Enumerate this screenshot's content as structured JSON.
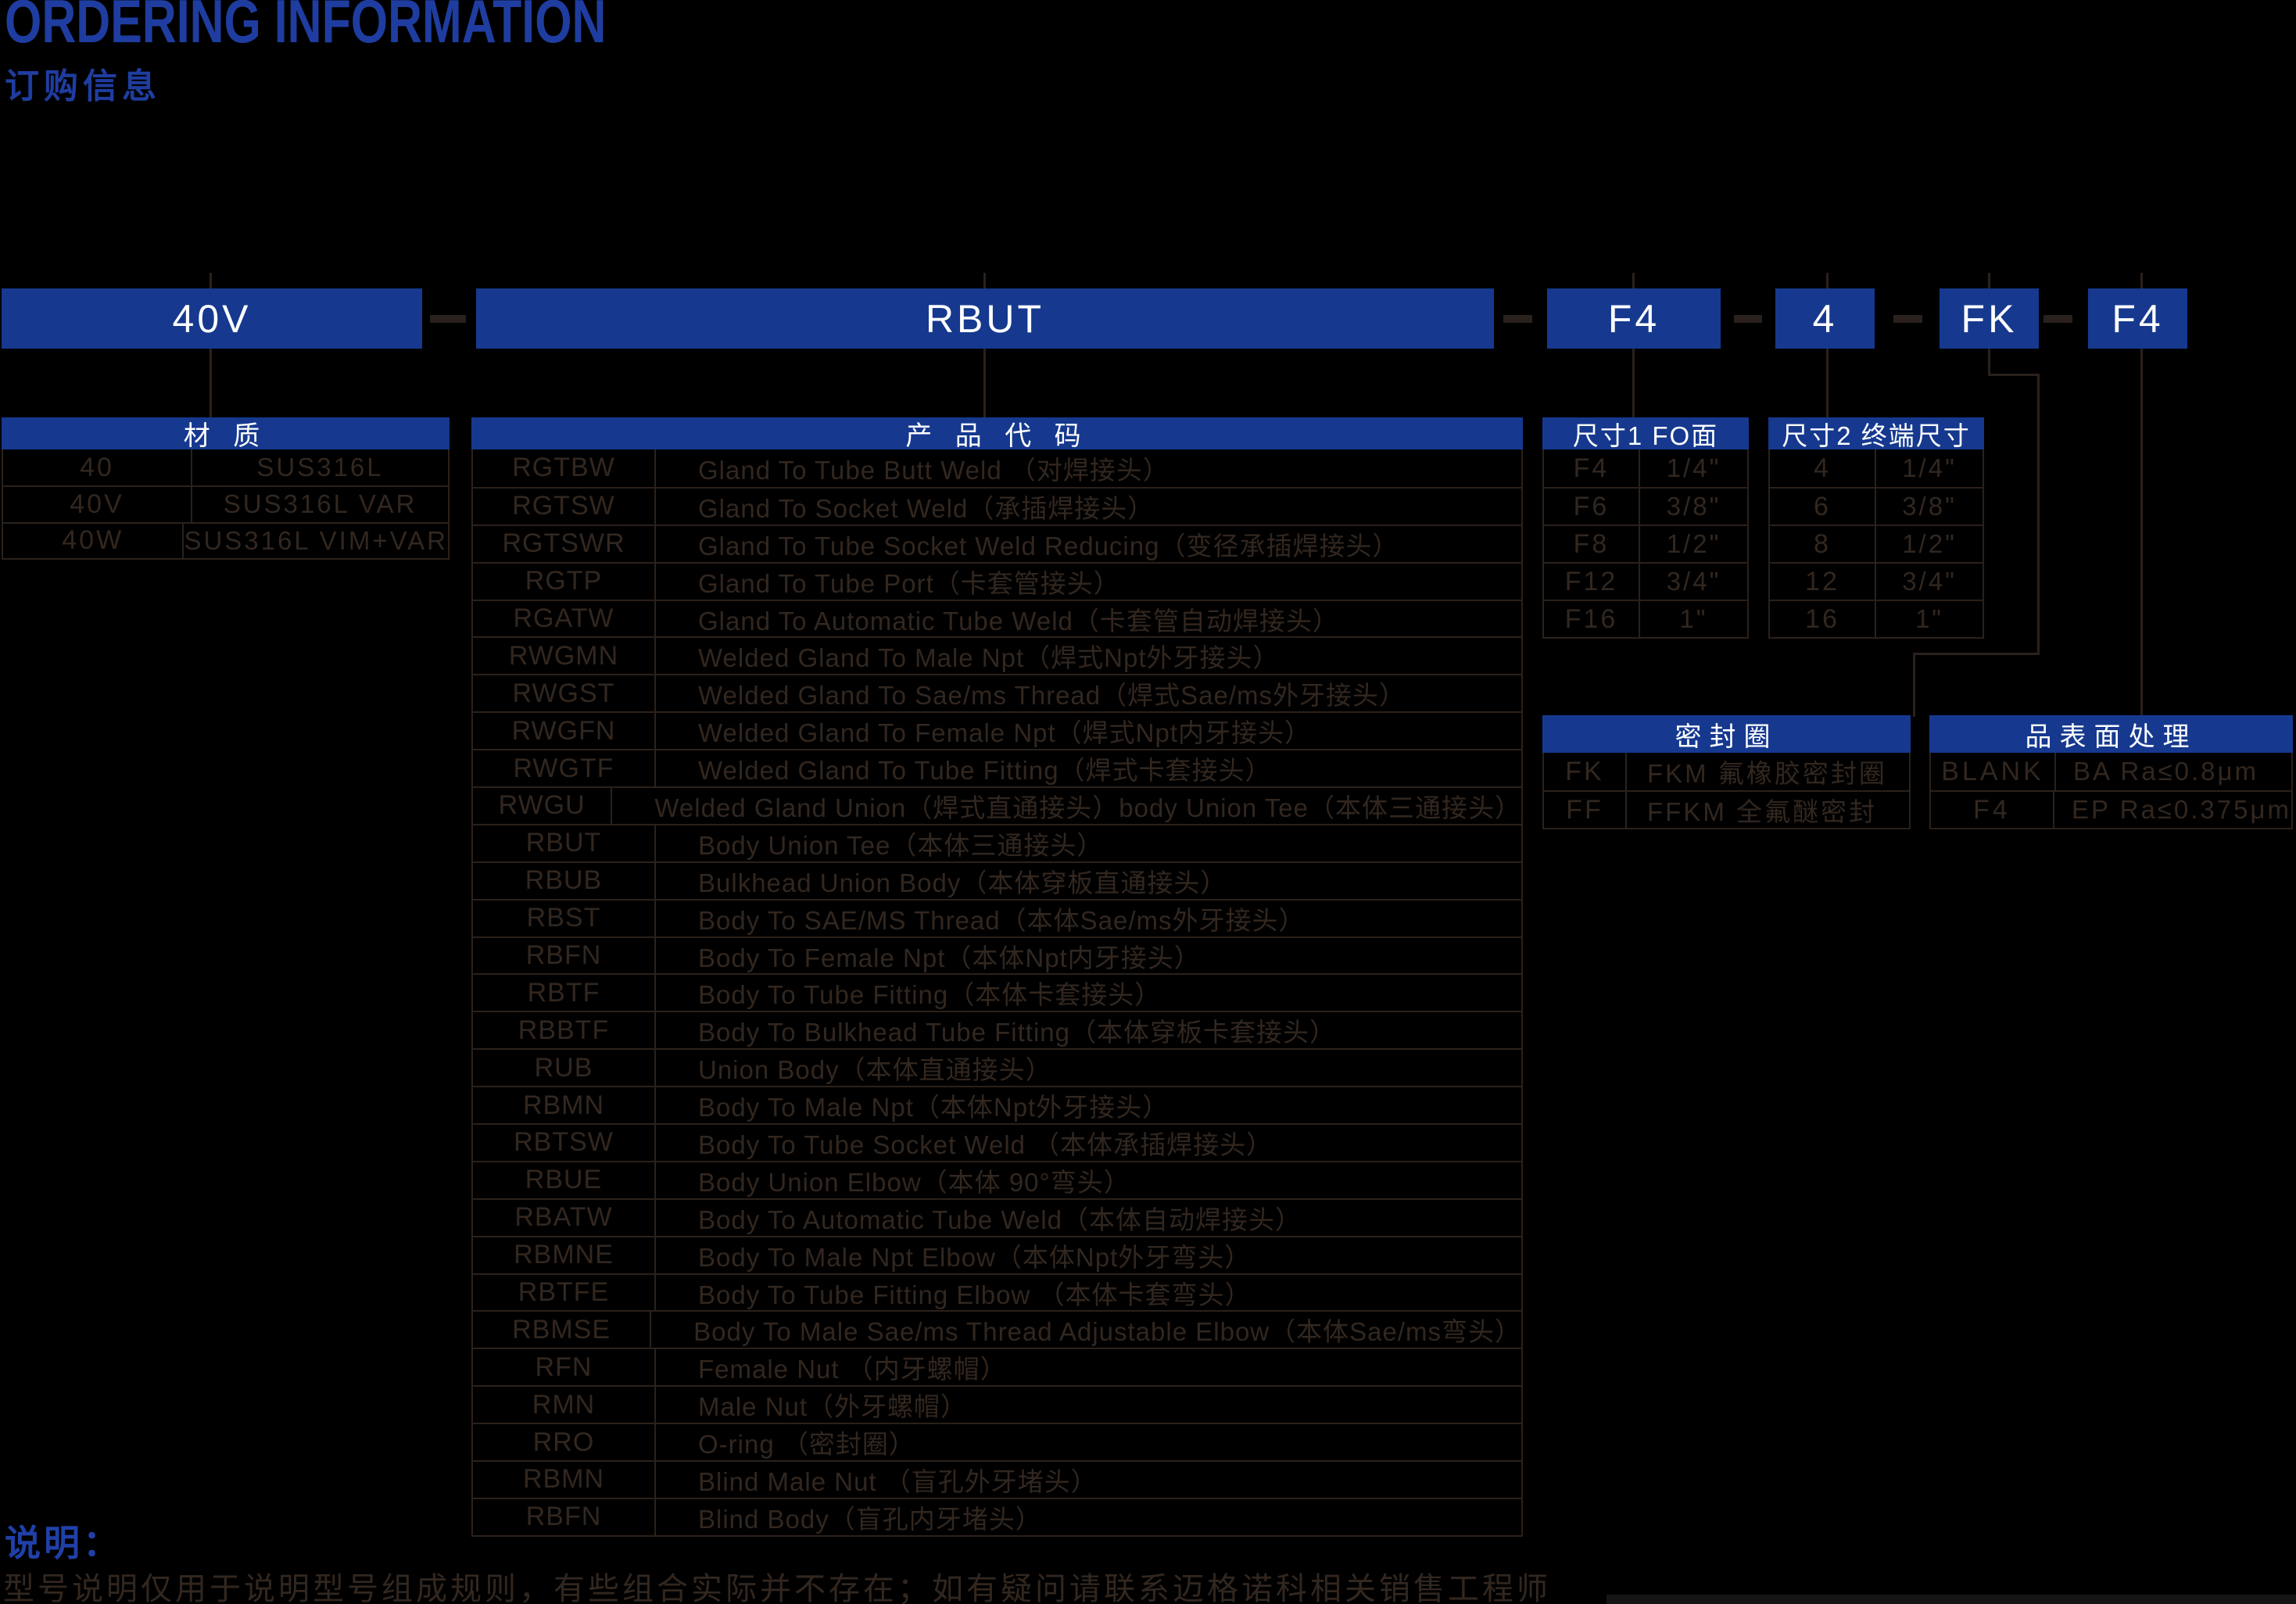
{
  "page": {
    "title": "ORDERING INFORMATION",
    "subtitle": "订购信息",
    "background": "#000000",
    "accent_blue": "#16398F",
    "title_blue": "#1F3DA0",
    "line_color": "#2A211C"
  },
  "order_code": {
    "segments": [
      {
        "label": "40V"
      },
      {
        "label": "RBUT"
      },
      {
        "label": "F4"
      },
      {
        "label": "4"
      },
      {
        "label": "FK"
      },
      {
        "label": "F4"
      }
    ]
  },
  "tables": {
    "material": {
      "header": "材 质",
      "rows": [
        {
          "code": "40",
          "desc": "SUS316L"
        },
        {
          "code": "40V",
          "desc": "SUS316L VAR"
        },
        {
          "code": "40W",
          "desc": "SUS316L VIM+VAR"
        }
      ]
    },
    "product": {
      "header": "产 品 代 码",
      "rows": [
        {
          "code": "RGTBW",
          "desc": "Gland To Tube Butt Weld （对焊接头）"
        },
        {
          "code": "RGTSW",
          "desc": "Gland To Socket Weld（承插焊接头）"
        },
        {
          "code": "RGTSWR",
          "desc": "Gland To Tube Socket Weld Reducing（变径承插焊接头）"
        },
        {
          "code": "RGTP",
          "desc": "Gland To Tube Port（卡套管接头）"
        },
        {
          "code": "RGATW",
          "desc": "Gland To Automatic Tube Weld（卡套管自动焊接头）"
        },
        {
          "code": "RWGMN",
          "desc": "Welded Gland To Male Npt（焊式Npt外牙接头）"
        },
        {
          "code": "RWGST",
          "desc": "Welded Gland To Sae/ms Thread（焊式Sae/ms外牙接头）"
        },
        {
          "code": "RWGFN",
          "desc": "Welded Gland To Female Npt（焊式Npt内牙接头）"
        },
        {
          "code": "RWGTF",
          "desc": "Welded Gland To Tube Fitting（焊式卡套接头）"
        },
        {
          "code": "RWGU",
          "desc": "Welded Gland Union（焊式直通接头）body Union Tee（本体三通接头）"
        },
        {
          "code": "RBUT",
          "desc": "Body Union Tee（本体三通接头）"
        },
        {
          "code": "RBUB",
          "desc": "Bulkhead Union Body（本体穿板直通接头）"
        },
        {
          "code": "RBST",
          "desc": "Body To SAE/MS Thread（本体Sae/ms外牙接头）"
        },
        {
          "code": "RBFN",
          "desc": "Body To Female Npt（本体Npt内牙接头）"
        },
        {
          "code": "RBTF",
          "desc": "Body To Tube Fitting（本体卡套接头）"
        },
        {
          "code": "RBBTF",
          "desc": "Body To Bulkhead Tube Fitting（本体穿板卡套接头）"
        },
        {
          "code": "RUB",
          "desc": "Union Body（本体直通接头）"
        },
        {
          "code": "RBMN",
          "desc": "Body To Male Npt（本体Npt外牙接头）"
        },
        {
          "code": "RBTSW",
          "desc": "Body To Tube Socket Weld （本体承插焊接头）"
        },
        {
          "code": "RBUE",
          "desc": "Body Union Elbow（本体 90°弯头）"
        },
        {
          "code": "RBATW",
          "desc": "Body To Automatic Tube Weld（本体自动焊接头）"
        },
        {
          "code": "RBMNE",
          "desc": "Body To Male Npt Elbow（本体Npt外牙弯头）"
        },
        {
          "code": "RBTFE",
          "desc": "Body To Tube Fitting Elbow （本体卡套弯头）"
        },
        {
          "code": "RBMSE",
          "desc": "Body To Male Sae/ms Thread Adjustable Elbow（本体Sae/ms弯头）"
        },
        {
          "code": "RFN",
          "desc": "Female Nut （内牙螺帽）"
        },
        {
          "code": "RMN",
          "desc": "Male Nut（外牙螺帽）"
        },
        {
          "code": "RRO",
          "desc": "O-ring （密封圈）"
        },
        {
          "code": "RBMN",
          "desc": "Blind Male Nut （盲孔外牙堵头）"
        },
        {
          "code": "RBFN",
          "desc": "Blind Body（盲孔内牙堵头）"
        }
      ]
    },
    "size1": {
      "header": "尺寸1 FO面",
      "rows": [
        {
          "code": "F4",
          "desc": "1/4\""
        },
        {
          "code": "F6",
          "desc": "3/8\""
        },
        {
          "code": "F8",
          "desc": "1/2\""
        },
        {
          "code": "F12",
          "desc": "3/4\""
        },
        {
          "code": "F16",
          "desc": "1\""
        }
      ]
    },
    "size2": {
      "header": "尺寸2 终端尺寸",
      "rows": [
        {
          "code": "4",
          "desc": "1/4\""
        },
        {
          "code": "6",
          "desc": "3/8\""
        },
        {
          "code": "8",
          "desc": "1/2\""
        },
        {
          "code": "12",
          "desc": "3/4\""
        },
        {
          "code": "16",
          "desc": "1\""
        }
      ]
    },
    "seal": {
      "header": "密封圈",
      "rows": [
        {
          "code": "FK",
          "desc": "FKM 氟橡胶密封圈"
        },
        {
          "code": "FF",
          "desc": "FFKM 全氟醚密封"
        }
      ]
    },
    "surface": {
      "header": "品表面处理",
      "rows": [
        {
          "code": "BLANK",
          "desc": "BA Ra≤0.8μm"
        },
        {
          "code": "F4",
          "desc": "EP Ra≤0.375μm"
        }
      ]
    }
  },
  "notes": {
    "label": "说明：",
    "text": "型号说明仅用于说明型号组成规则，有些组合实际并不存在；如有疑问请联系迈格诺科相关销售工程师"
  }
}
